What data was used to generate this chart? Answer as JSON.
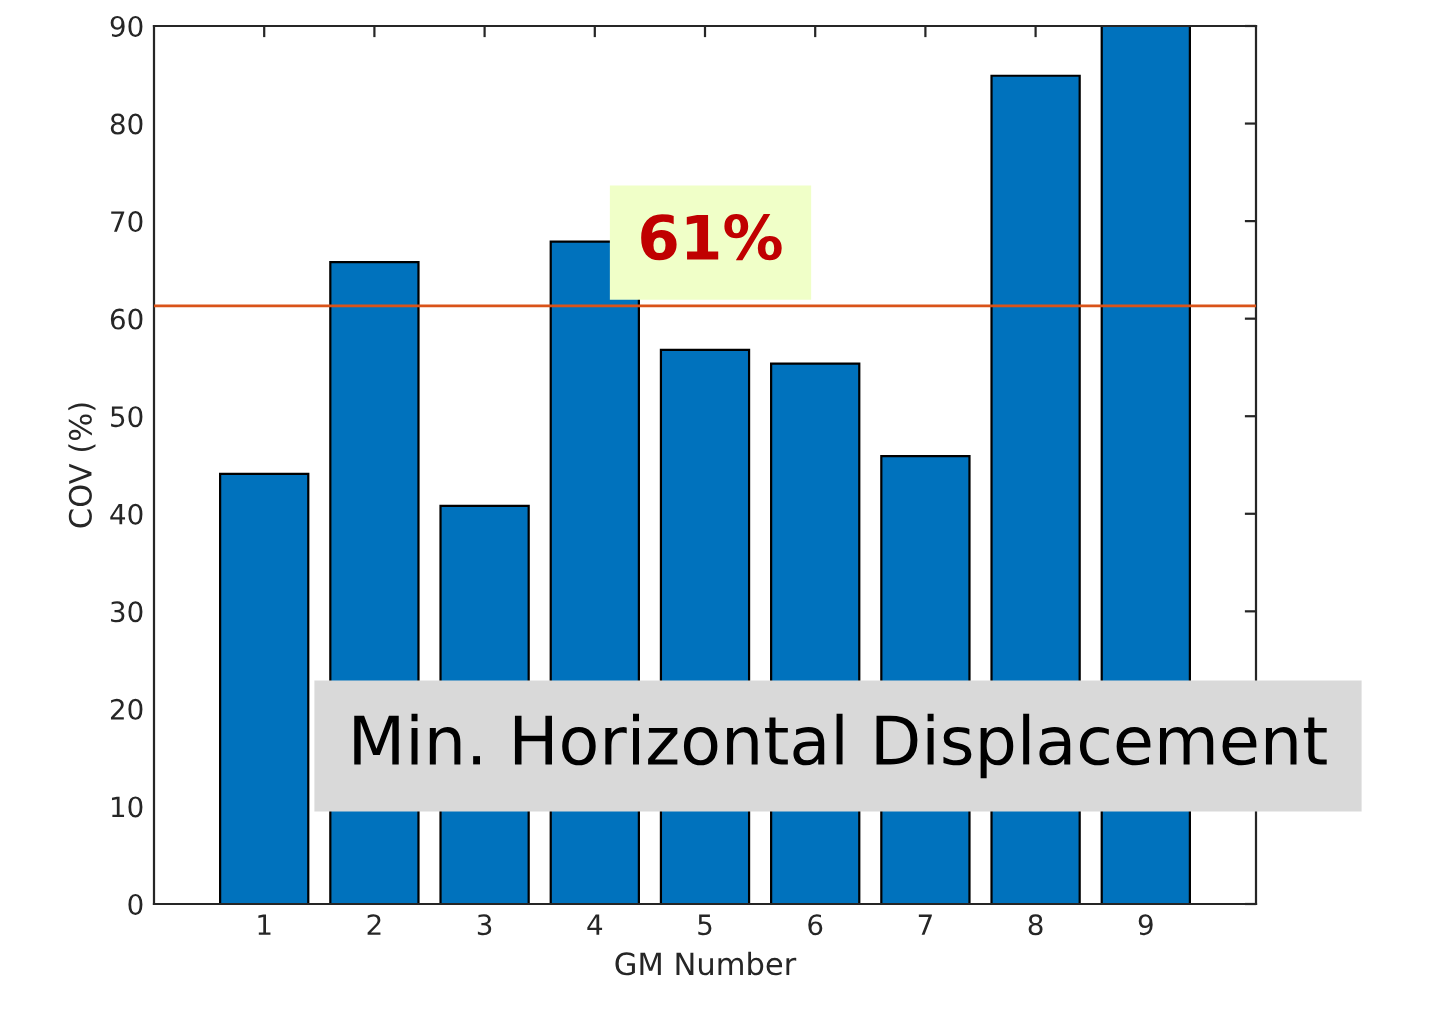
{
  "chart_data": {
    "type": "bar",
    "xlabel": "GM Number",
    "ylabel": "COV (%)",
    "categories": [
      "1",
      "2",
      "3",
      "4",
      "5",
      "6",
      "7",
      "8",
      "9"
    ],
    "values": [
      44.1,
      65.8,
      40.8,
      67.9,
      56.8,
      55.4,
      45.9,
      84.9,
      90
    ],
    "color": "#0072bd",
    "ylim": [
      0,
      90
    ],
    "yticks": [
      0,
      10,
      20,
      30,
      40,
      50,
      60,
      70,
      80,
      90
    ],
    "ref_lines": [
      {
        "axis": "y",
        "value": 61.3,
        "label": "61%",
        "color": "#d95319"
      }
    ],
    "annotations": [
      "Min. Horizontal Displacement"
    ],
    "grid": false,
    "legend": false
  }
}
